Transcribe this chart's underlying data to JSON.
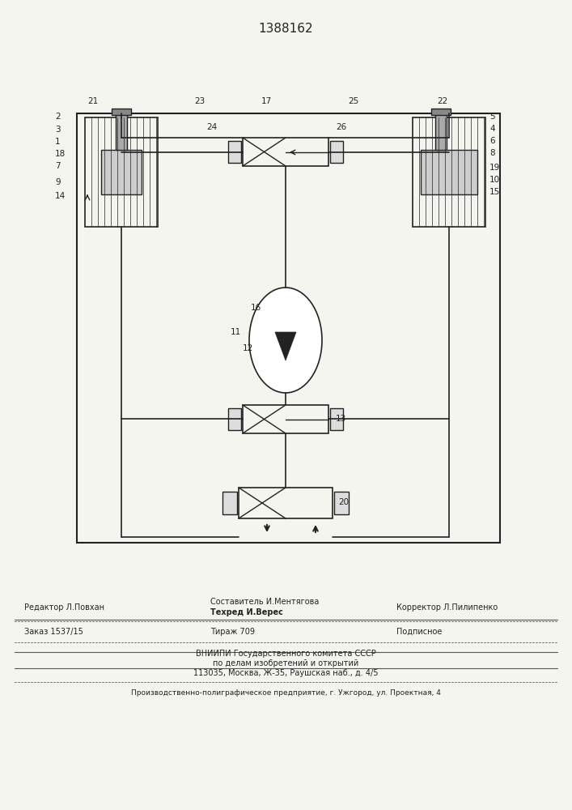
{
  "patent_number": "1388162",
  "bg_color": "#f5f5f0",
  "line_color": "#222222",
  "title_fontsize": 12,
  "label_fontsize": 7.5,
  "footer_fontsize": 7,
  "footer": {
    "line1_left": "Редактор Л.Повхан",
    "line1_center_top": "Составитель И.Ментягова",
    "line1_center_bot": "Техред И.Верес",
    "line1_right": "Корректор Л.Пилипенко",
    "line2_left": "Заказ 1537/15",
    "line2_center": "Тираж 709",
    "line2_right": "Подписное",
    "line3": "ВНИИПИ Государственного комитета СССР",
    "line4": "по делам изобретений и открытий",
    "line5": "113035, Москва, Ж-35, Раушская наб., д. 4/5",
    "line6": "Производственно-полиграфическое предприятие, г. Ужгород, ул. Проектная, 4"
  }
}
